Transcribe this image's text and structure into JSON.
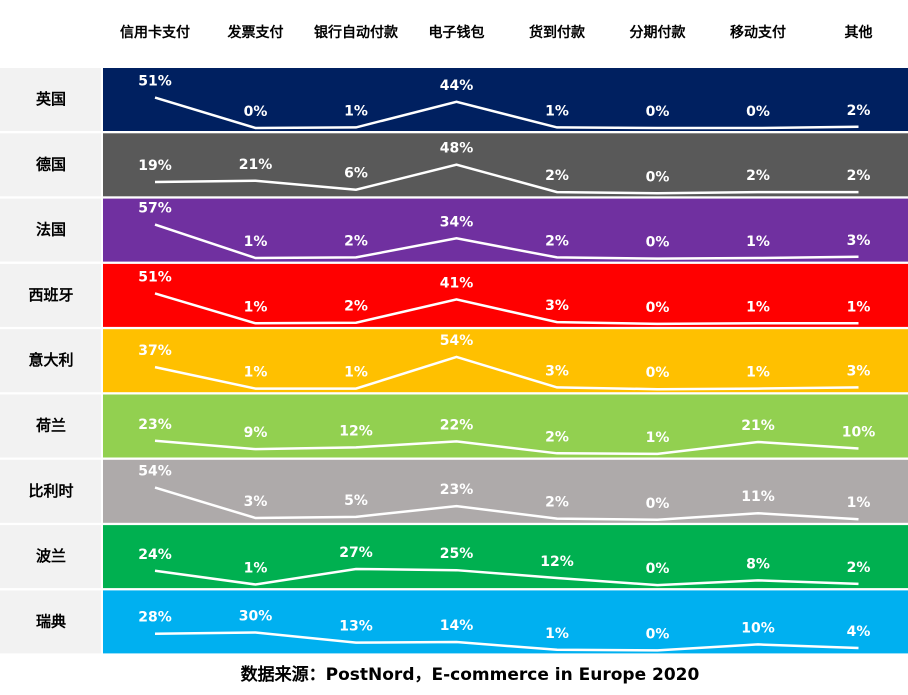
{
  "chart_data": {
    "type": "line",
    "categories": [
      "信用卡支付",
      "发票支付",
      "银行自动付款",
      "电子钱包",
      "货到付款",
      "分期付款",
      "移动支付",
      "其他"
    ],
    "series": [
      {
        "name": "英国",
        "color": "#002060",
        "values": [
          51,
          0,
          1,
          44,
          1,
          0,
          0,
          2
        ],
        "value_labels": [
          "51%",
          "0%",
          "1%",
          "44%",
          "1%",
          "0%",
          "0%",
          "2%"
        ]
      },
      {
        "name": "德国",
        "color": "#595959",
        "values": [
          19,
          21,
          6,
          48,
          2,
          0,
          2,
          2
        ],
        "value_labels": [
          "19%",
          "21%",
          "6%",
          "48%",
          "2%",
          "0%",
          "2%",
          "2%"
        ]
      },
      {
        "name": "法国",
        "color": "#7030a0",
        "values": [
          57,
          1,
          2,
          34,
          2,
          0,
          1,
          3
        ],
        "value_labels": [
          "57%",
          "1%",
          "2%",
          "34%",
          "2%",
          "0%",
          "1%",
          "3%"
        ]
      },
      {
        "name": "西班牙",
        "color": "#ff0000",
        "values": [
          51,
          1,
          2,
          41,
          3,
          0,
          1,
          1
        ],
        "value_labels": [
          "51%",
          "1%",
          "2%",
          "41%",
          "3%",
          "0%",
          "1%",
          "1%"
        ]
      },
      {
        "name": "意大利",
        "color": "#ffc000",
        "values": [
          37,
          1,
          1,
          54,
          3,
          0,
          1,
          3
        ],
        "value_labels": [
          "37%",
          "1%",
          "1%",
          "54%",
          "3%",
          "0%",
          "1%",
          "3%"
        ]
      },
      {
        "name": "荷兰",
        "color": "#92d050",
        "values": [
          23,
          9,
          12,
          22,
          2,
          1,
          21,
          10
        ],
        "value_labels": [
          "23%",
          "9%",
          "12%",
          "22%",
          "2%",
          "1%",
          "21%",
          "10%"
        ]
      },
      {
        "name": "比利时",
        "color": "#aeaaaa",
        "values": [
          54,
          3,
          5,
          23,
          2,
          0,
          11,
          1
        ],
        "value_labels": [
          "54%",
          "3%",
          "5%",
          "23%",
          "2%",
          "0%",
          "11%",
          "1%"
        ]
      },
      {
        "name": "波兰",
        "color": "#00b050",
        "values": [
          24,
          1,
          27,
          25,
          12,
          0,
          8,
          2
        ],
        "value_labels": [
          "24%",
          "1%",
          "27%",
          "25%",
          "12%",
          "0%",
          "8%",
          "2%"
        ]
      },
      {
        "name": "瑞典",
        "color": "#00b0f0",
        "values": [
          28,
          30,
          13,
          14,
          1,
          0,
          10,
          4
        ],
        "value_labels": [
          "28%",
          "30%",
          "13%",
          "14%",
          "1%",
          "0%",
          "10%",
          "4%"
        ]
      }
    ],
    "source": "数据来源：PostNord，E-commerce in Europe 2020"
  }
}
